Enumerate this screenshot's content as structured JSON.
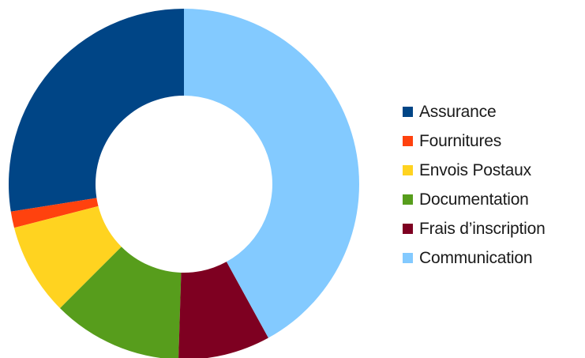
{
  "chart_data": {
    "type": "pie",
    "subtype": "donut",
    "title": "",
    "legend_position": "right",
    "categories": [
      "Assurance",
      "Fournitures",
      "Envois Postaux",
      "Documentation",
      "Frais d’inscription",
      "Communication"
    ],
    "values": [
      27.5,
      1.5,
      8.5,
      12.0,
      8.5,
      42.0
    ],
    "colors": [
      "#004586",
      "#ff420e",
      "#ffd320",
      "#579d1c",
      "#7e0021",
      "#83caff"
    ],
    "legend": [
      {
        "label": "Assurance",
        "color": "#004586"
      },
      {
        "label": "Fournitures",
        "color": "#ff420e"
      },
      {
        "label": "Envois Postaux",
        "color": "#ffd320"
      },
      {
        "label": "Documentation",
        "color": "#579d1c"
      },
      {
        "label": "Frais d’inscription",
        "color": "#7e0021"
      },
      {
        "label": "Communication",
        "color": "#83caff"
      }
    ]
  }
}
